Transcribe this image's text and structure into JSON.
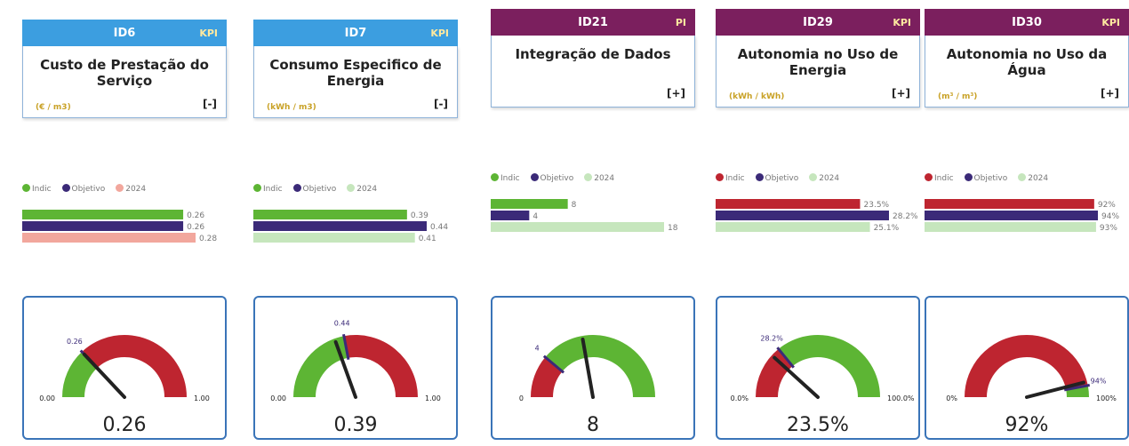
{
  "cards": [
    {
      "id": "ID6",
      "tag": "KPI",
      "header_color": "#3c9ee0",
      "title": "Custo de Prestação do Serviço",
      "unit": "(€ / m3)",
      "sign": "[-]",
      "legend": [
        "Indic",
        "Objetivo",
        "2024"
      ],
      "colors": [
        "#5db534",
        "#3b2a78",
        "#f2a79d"
      ],
      "bars": [
        0.26,
        0.26,
        0.28
      ],
      "gauge": {
        "min": 0,
        "min_label": "0.00",
        "max": 1,
        "max_label": "1.00",
        "value": 0.26,
        "target": 0.26,
        "colors": [
          "#5db534",
          "#be2530"
        ]
      }
    },
    {
      "id": "ID7",
      "tag": "KPI",
      "header_color": "#3c9ee0",
      "title": "Consumo Especifico de Energia",
      "unit": "(kWh / m3)",
      "sign": "[-]",
      "legend": [
        "Indic",
        "Objetivo",
        "2024"
      ],
      "colors": [
        "#5db534",
        "#3b2a78",
        "#c6e6bd"
      ],
      "bars": [
        0.39,
        0.44,
        0.41
      ],
      "gauge": {
        "min": 0,
        "min_label": "0.00",
        "max": 1,
        "max_label": "1.00",
        "value": 0.39,
        "target": 0.44,
        "colors": [
          "#5db534",
          "#be2530"
        ]
      }
    },
    {
      "id": "ID21",
      "tag": "PI",
      "header_color": "#7b1f5e",
      "title": "Integração de Dados",
      "unit": "",
      "sign": "[+]",
      "legend": [
        "Indic",
        "Objetivo",
        "2024"
      ],
      "colors": [
        "#5db534",
        "#3b2a78",
        "#c6e6bd"
      ],
      "bars": [
        8,
        4,
        18
      ],
      "gauge": {
        "min": 0,
        "max": 18,
        "value": 8,
        "target": 4,
        "colors": [
          "#be2530",
          "#5db534"
        ]
      }
    },
    {
      "id": "ID29",
      "tag": "KPI",
      "header_color": "#7b1f5e",
      "title": "Autonomia no Uso de Energia",
      "unit": "(kWh / kWh)",
      "sign": "[+]",
      "legend": [
        "Indic",
        "Objetivo",
        "2024"
      ],
      "colors": [
        "#be2530",
        "#3b2a78",
        "#c6e6bd"
      ],
      "bars": [
        23.5,
        28.2,
        25.1
      ],
      "bar_labels": [
        "23.5%",
        "28.2%",
        "25.1%"
      ],
      "gauge": {
        "min": 0,
        "min_label": "0.0%",
        "max": 100,
        "max_label": "100.0%",
        "value": 23.5,
        "value_label": "23.5%",
        "target": 28.2,
        "target_label": "28.2%",
        "colors": [
          "#be2530",
          "#5db534"
        ]
      }
    },
    {
      "id": "ID30",
      "tag": "KPI",
      "header_color": "#7b1f5e",
      "title": "Autonomia no Uso da Água",
      "unit": "(m³ / m³)",
      "sign": "[+]",
      "legend": [
        "Indic",
        "Objetivo",
        "2024"
      ],
      "colors": [
        "#be2530",
        "#3b2a78",
        "#c6e6bd"
      ],
      "bars": [
        92,
        94,
        93
      ],
      "bar_labels": [
        "92%",
        "94%",
        "93%"
      ],
      "gauge": {
        "min": 0,
        "min_label": "0%",
        "max": 100,
        "max_label": "100%",
        "value": 92,
        "value_label": "92%",
        "target": 94,
        "target_label": "94%",
        "colors": [
          "#be2530",
          "#5db534"
        ]
      }
    }
  ]
}
